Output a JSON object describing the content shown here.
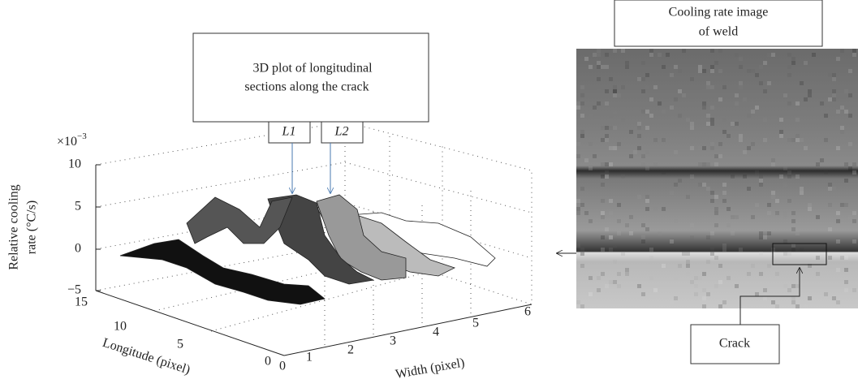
{
  "plot": {
    "callout": [
      "3D plot of longitudinal",
      "sections along the crack"
    ],
    "section_labels": [
      "L1",
      "L2"
    ],
    "z_axis": {
      "label": [
        "Relative cooling",
        "rate (°C/s)"
      ],
      "multiplier": "×10",
      "exponent": "−3",
      "ticks": [
        "10",
        "5",
        "0",
        "−5"
      ]
    },
    "longitude_axis": {
      "label": "Longitude (pixel)",
      "ticks": [
        "15",
        "10",
        "5",
        "0"
      ]
    },
    "width_axis": {
      "label": "Width (pixel)",
      "ticks": [
        "0",
        "1",
        "2",
        "3",
        "4",
        "5",
        "6"
      ]
    }
  },
  "image": {
    "title": [
      "Cooling rate image",
      "of weld"
    ],
    "callout": "Crack"
  }
}
